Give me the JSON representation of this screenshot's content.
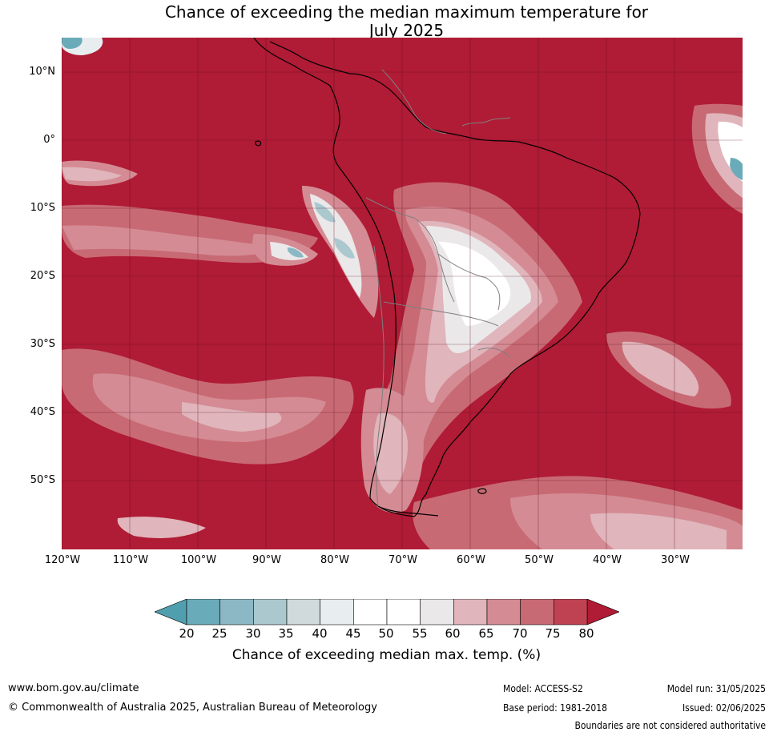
{
  "title": {
    "line1": "Chance of exceeding the median maximum temperature for",
    "line2": "July 2025"
  },
  "map": {
    "lat_labels": [
      "10°N",
      "0°",
      "10°S",
      "20°S",
      "30°S",
      "40°S",
      "50°S"
    ],
    "lon_labels": [
      "120°W",
      "110°W",
      "100°W",
      "90°W",
      "80°W",
      "70°W",
      "60°W",
      "50°W",
      "40°W",
      "30°W"
    ],
    "background_color": "#b01b35",
    "gridline_color": "#5a1020",
    "coastline_color": "#000000",
    "border_color": "#808080"
  },
  "colorbar": {
    "ticks": [
      "20",
      "25",
      "30",
      "35",
      "40",
      "45",
      "50",
      "55",
      "60",
      "65",
      "70",
      "75",
      "80"
    ],
    "colors": [
      "#4f9faf",
      "#6aabba",
      "#8bb8c4",
      "#abc8cf",
      "#d0d9db",
      "#e8eef0",
      "#ffffff",
      "#ffffff",
      "#ebe8e9",
      "#e0b5bb",
      "#d48b94",
      "#c86a74",
      "#bf4252",
      "#b01b35"
    ],
    "label": "Chance of exceeding median max. temp. (%)"
  },
  "footer": {
    "website": "www.bom.gov.au/climate",
    "copyright": "© Commonwealth of Australia 2025, Australian Bureau of Meteorology",
    "model": "Model: ACCESS-S2",
    "base_period": "Base period: 1981-2018",
    "model_run": "Model run: 31/05/2025",
    "issued": "Issued: 02/06/2025",
    "disclaimer": "Boundaries are not considered authoritative"
  }
}
